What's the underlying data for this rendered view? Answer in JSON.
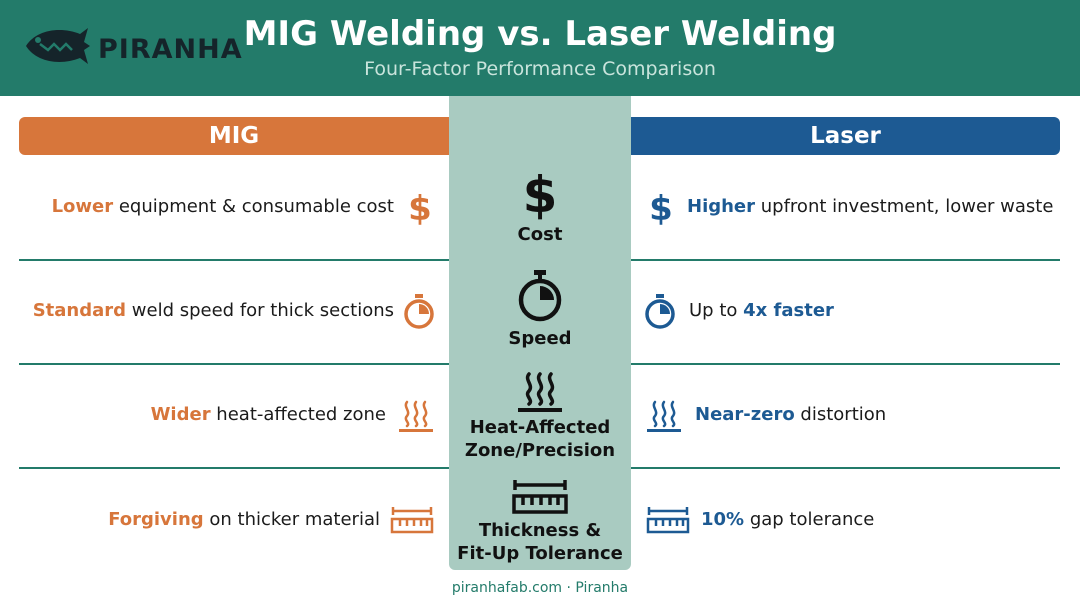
{
  "header": {
    "brand": "PIRANHA",
    "title": "MIG Welding vs. Laser Welding",
    "subtitle": "Four-Factor Performance Comparison"
  },
  "columns": {
    "left": "MIG",
    "right": "Laser"
  },
  "colors": {
    "header_bg": "#237b6a",
    "mig": "#d7763b",
    "laser": "#1d5a93",
    "center_bg": "#a9cbc1"
  },
  "rows": [
    {
      "factor": "Cost",
      "icon": "dollar-icon",
      "mig": {
        "highlight": "Lower",
        "text": " equipment & consumable cost"
      },
      "laser": {
        "highlight": "Higher",
        "text": " upfront investment, lower waste"
      }
    },
    {
      "factor": "Speed",
      "icon": "stopwatch-icon",
      "mig": {
        "highlight": "Standard",
        "text": " weld speed for thick sections"
      },
      "laser": {
        "prefix": "Up to ",
        "highlight": "4x faster"
      }
    },
    {
      "factor_line1": "Heat-Affected",
      "factor_line2": "Zone/Precision",
      "icon": "heat-waves-icon",
      "mig": {
        "highlight": "Wider",
        "text": " heat-affected zone"
      },
      "laser": {
        "highlight": "Near-zero",
        "text": " distortion"
      }
    },
    {
      "factor_line1": "Thickness &",
      "factor_line2": "Fit-Up Tolerance",
      "icon": "ruler-icon",
      "mig": {
        "highlight": "Forgiving",
        "text": " on thicker material"
      },
      "laser": {
        "highlight": "10%",
        "text": " gap tolerance"
      }
    }
  ],
  "footer": "piranhafab.com · Piranha"
}
